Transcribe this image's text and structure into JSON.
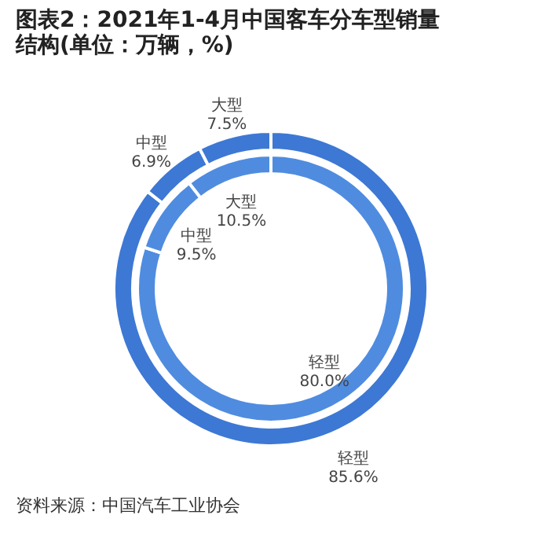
{
  "chart_data": [
    {
      "type": "donut",
      "title": [
        "图表2：2021年1-4月中国客车分车型销量",
        "结构(单位：万辆，%)"
      ],
      "categories": [
        "轻型",
        "中型",
        "大型"
      ],
      "values": [
        85.6,
        6.9,
        7.5
      ],
      "colors": [
        "#3d78d4",
        "#3d78d4",
        "#3d78d4"
      ],
      "value_labels": [
        "85.6%",
        "6.9%",
        "7.5%"
      ],
      "annotations": [
        "资料来源：中国汽车工业协会"
      ]
    },
    {
      "type": "donut",
      "categories": [
        "轻型",
        "中型",
        "大型"
      ],
      "values": [
        80.0,
        9.5,
        10.5
      ],
      "colors": [
        "#4f8ce0",
        "#4f8ce0",
        "#4f8ce0"
      ],
      "value_labels": [
        "80.0%",
        "9.5%",
        "10.5%"
      ]
    }
  ]
}
